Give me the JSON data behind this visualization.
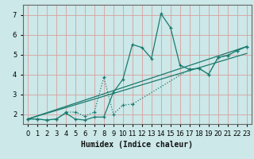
{
  "xlabel": "Humidex (Indice chaleur)",
  "bg_color": "#cce8e8",
  "line_color": "#1a7a6e",
  "grid_color": "#d9a0a0",
  "xlim": [
    -0.5,
    23.5
  ],
  "ylim": [
    1.5,
    7.5
  ],
  "xticks": [
    0,
    1,
    2,
    3,
    4,
    5,
    6,
    7,
    8,
    9,
    10,
    11,
    12,
    13,
    14,
    15,
    16,
    17,
    18,
    19,
    20,
    21,
    22,
    23
  ],
  "yticks": [
    2,
    3,
    4,
    5,
    6,
    7
  ],
  "line1_x": [
    0,
    1,
    2,
    3,
    4,
    5,
    6,
    7,
    8,
    9,
    10,
    11,
    12,
    13,
    14,
    15,
    16,
    17,
    18,
    19,
    20,
    21,
    22,
    23
  ],
  "line1_y": [
    1.75,
    1.75,
    1.7,
    1.75,
    2.05,
    1.75,
    1.7,
    1.85,
    1.85,
    3.1,
    3.75,
    5.5,
    5.35,
    4.8,
    7.05,
    6.35,
    4.45,
    4.25,
    4.3,
    4.0,
    4.85,
    4.95,
    5.2,
    5.4
  ],
  "line2_x": [
    0,
    1,
    2,
    3,
    4,
    5,
    6,
    7,
    8,
    9,
    10,
    11,
    17,
    18,
    19,
    20,
    21,
    22,
    23
  ],
  "line2_y": [
    1.75,
    1.75,
    1.7,
    1.75,
    2.1,
    2.1,
    1.9,
    2.1,
    3.85,
    2.0,
    2.45,
    2.5,
    4.25,
    4.3,
    4.0,
    4.85,
    4.95,
    5.2,
    5.4
  ],
  "line3_x": [
    0,
    23
  ],
  "line3_y": [
    1.75,
    5.4
  ],
  "line4_x": [
    0,
    23
  ],
  "line4_y": [
    1.75,
    5.05
  ],
  "tick_fontsize": 6,
  "xlabel_fontsize": 7
}
